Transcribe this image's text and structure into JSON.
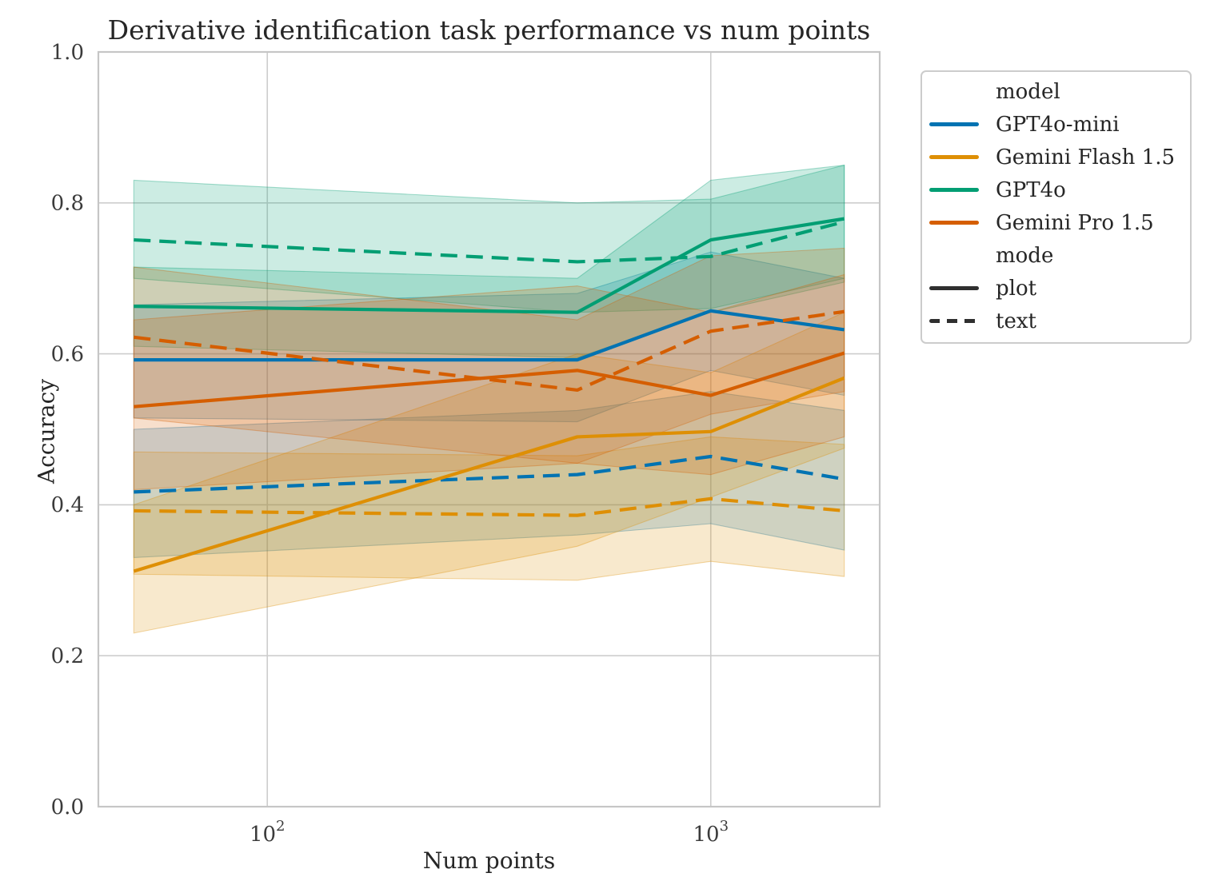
{
  "chart": {
    "title": "Derivative identification task performance vs num points",
    "xlabel": "Num points",
    "ylabel": "Accuracy"
  },
  "chart_data": {
    "type": "line",
    "title": "Derivative identification task performance vs num points",
    "xlabel": "Num points",
    "ylabel": "Accuracy",
    "x_scale": "log",
    "grid": true,
    "legend_position": "outside-right",
    "x": [
      50,
      500,
      1000,
      2000
    ],
    "xlim": [
      41.6,
      2404
    ],
    "ylim": [
      0.0,
      1.0
    ],
    "yticks": [
      0.0,
      0.2,
      0.4,
      0.6,
      0.8,
      1.0
    ],
    "xticks": [
      {
        "value": 100,
        "base": "10",
        "exp": "2"
      },
      {
        "value": 1000,
        "base": "10",
        "exp": "3"
      }
    ],
    "band_alpha": 0.2,
    "series": [
      {
        "model": "GPT4o-mini",
        "mode": "plot",
        "color": "#0173b2",
        "y": [
          0.592,
          0.592,
          0.657,
          0.632
        ],
        "band_lower": [
          0.515,
          0.51,
          0.578,
          0.545
        ],
        "band_upper": [
          0.665,
          0.68,
          0.735,
          0.7
        ]
      },
      {
        "model": "GPT4o-mini",
        "mode": "text",
        "color": "#0173b2",
        "y": [
          0.417,
          0.44,
          0.464,
          0.434
        ],
        "band_lower": [
          0.33,
          0.36,
          0.375,
          0.34
        ],
        "band_upper": [
          0.5,
          0.525,
          0.55,
          0.525
        ]
      },
      {
        "model": "Gemini Flash 1.5",
        "mode": "plot",
        "color": "#de8f05",
        "y": [
          0.312,
          0.49,
          0.497,
          0.568
        ],
        "band_lower": [
          0.23,
          0.345,
          0.41,
          0.475
        ],
        "band_upper": [
          0.4,
          0.6,
          0.575,
          0.655
        ]
      },
      {
        "model": "Gemini Flash 1.5",
        "mode": "text",
        "color": "#de8f05",
        "y": [
          0.392,
          0.386,
          0.408,
          0.392
        ],
        "band_lower": [
          0.308,
          0.3,
          0.325,
          0.305
        ],
        "band_upper": [
          0.47,
          0.465,
          0.49,
          0.48
        ]
      },
      {
        "model": "GPT4o",
        "mode": "plot",
        "color": "#029e73",
        "y": [
          0.663,
          0.655,
          0.751,
          0.779
        ],
        "band_lower": [
          0.61,
          0.595,
          0.655,
          0.695
        ],
        "band_upper": [
          0.715,
          0.7,
          0.83,
          0.85
        ]
      },
      {
        "model": "GPT4o",
        "mode": "text",
        "color": "#029e73",
        "y": [
          0.751,
          0.722,
          0.729,
          0.775
        ],
        "band_lower": [
          0.7,
          0.655,
          0.66,
          0.7
        ],
        "band_upper": [
          0.83,
          0.8,
          0.805,
          0.85
        ]
      },
      {
        "model": "Gemini Pro 1.5",
        "mode": "plot",
        "color": "#d55e00",
        "y": [
          0.53,
          0.578,
          0.545,
          0.601
        ],
        "band_lower": [
          0.42,
          0.455,
          0.44,
          0.49
        ],
        "band_upper": [
          0.645,
          0.69,
          0.655,
          0.705
        ]
      },
      {
        "model": "Gemini Pro 1.5",
        "mode": "text",
        "color": "#d55e00",
        "y": [
          0.622,
          0.552,
          0.63,
          0.656
        ],
        "band_lower": [
          0.515,
          0.455,
          0.52,
          0.55
        ],
        "band_upper": [
          0.715,
          0.645,
          0.73,
          0.74
        ]
      }
    ]
  },
  "legend": {
    "model_title": "model",
    "mode_title": "mode",
    "models": [
      {
        "label": "GPT4o-mini",
        "color": "#0173b2"
      },
      {
        "label": "Gemini Flash 1.5",
        "color": "#de8f05"
      },
      {
        "label": "GPT4o",
        "color": "#029e73"
      },
      {
        "label": "Gemini Pro 1.5",
        "color": "#d55e00"
      }
    ],
    "modes": [
      {
        "label": "plot",
        "style": "solid"
      },
      {
        "label": "text",
        "style": "dashed"
      }
    ],
    "mode_line_color": "#2f2f2f"
  },
  "style": {
    "grid_color": "#cdcdcd",
    "spine_color": "#c6c6c6",
    "text_color": "#262626",
    "background": "#ffffff"
  }
}
